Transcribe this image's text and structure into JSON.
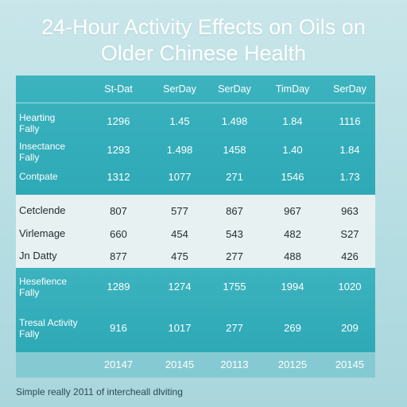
{
  "title": {
    "line1": "24-Hour Activity Effects on Oils on",
    "line2": "Older Chinese Health"
  },
  "columns": [
    "St-Dat",
    "SerDay",
    "SerDay",
    "TimDay",
    "SerDay"
  ],
  "group1": [
    {
      "label": "Hearting\nFally",
      "values": [
        "1296",
        "1.45",
        "1.498",
        "1.84",
        "1116"
      ]
    },
    {
      "label": "Insectance\nFally",
      "values": [
        "1293",
        "1.498",
        "1458",
        "1.40",
        "1.84"
      ]
    },
    {
      "label": "Contpate",
      "values": [
        "1312",
        "1077",
        "271",
        "1546",
        "1.73"
      ]
    }
  ],
  "group2": [
    {
      "label": "Cetclende",
      "values": [
        "807",
        "577",
        "867",
        "967",
        "963"
      ]
    },
    {
      "label": "Virlemage",
      "values": [
        "660",
        "454",
        "543",
        "482",
        "S27"
      ]
    },
    {
      "label": "Jn Datty",
      "values": [
        "877",
        "475",
        "277",
        "488",
        "426"
      ]
    }
  ],
  "group3": [
    {
      "label": "Hesefience\nFally",
      "values": [
        "1289",
        "1274",
        "1755",
        "1994",
        "1020"
      ]
    },
    {
      "label": "Tresal Activity\nFally",
      "values": [
        "916",
        "1017",
        "277",
        "269",
        "209"
      ]
    }
  ],
  "footer_years": [
    "20147",
    "20145",
    "20113",
    "20125",
    "20145"
  ],
  "caption": "Simple really 2011 of intercheall dlviting",
  "colors": {
    "teal": "#2ea9b6",
    "light": "#e8f1f2",
    "background": "#b4dde2"
  }
}
